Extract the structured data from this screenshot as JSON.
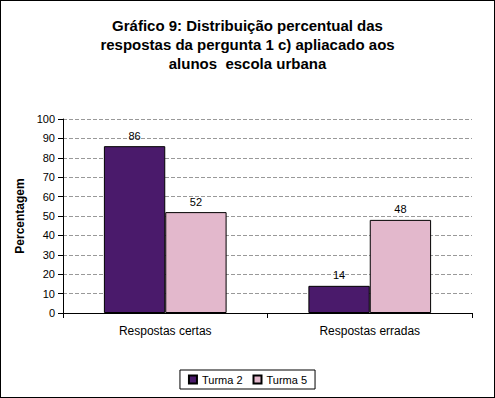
{
  "chart_data": {
    "type": "bar",
    "title": "Gráfico 9: Distribuição percentual das\nrespostas da pergunta 1 c) apliacado aos\nalunos  escola urbana",
    "y_label": "Percentagem",
    "categories": [
      "Respostas certas",
      "Respostas erradas"
    ],
    "series": [
      {
        "name": "Turma 2",
        "color": "#4a1a6b",
        "values": [
          86,
          14
        ]
      },
      {
        "name": "Turma 5",
        "color": "#e3b8cc",
        "values": [
          52,
          48
        ]
      }
    ],
    "ylim": [
      0,
      100
    ],
    "yticks": [
      0,
      10,
      20,
      30,
      40,
      50,
      60,
      70,
      80,
      90,
      100
    ],
    "grid": true,
    "legend": "bottom",
    "data_labels": true
  }
}
